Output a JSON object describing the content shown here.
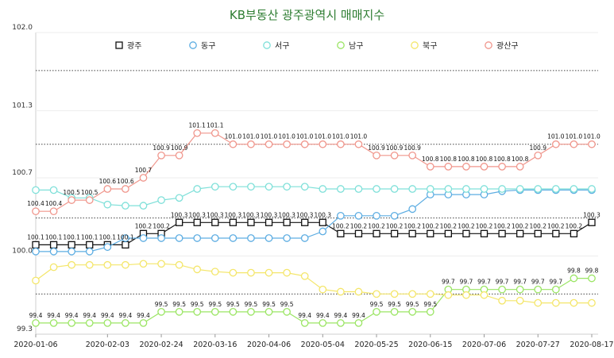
{
  "chart_data": {
    "type": "line",
    "title": "KB부동산 광주광역시 매매지수",
    "xlabel": "",
    "ylabel": "",
    "ylim": [
      99.3,
      102.0
    ],
    "y_ticks": [
      "102.0",
      "101.3",
      "100.7",
      "100.0",
      "99.3"
    ],
    "x_ticks": [
      "2020-01-06",
      "2020-02-03",
      "2020-02-24",
      "2020-03-16",
      "2020-04-06",
      "2020-05-04",
      "2020-05-25",
      "2020-06-15",
      "2020-07-06",
      "2020-07-27",
      "2020-08-17"
    ],
    "x_tick_index": [
      0,
      4,
      7,
      10,
      13,
      16,
      19,
      22,
      25,
      28,
      31
    ],
    "legend_position": "top",
    "grid": "dotted horizontal reference lines",
    "reference_lines": [
      101.66,
      101.0,
      100.34,
      99.66
    ],
    "series": [
      {
        "name": "광주",
        "color": "#111111",
        "marker": "square",
        "labeled": true,
        "values": [
          100.1,
          100.1,
          100.1,
          100.1,
          100.1,
          100.1,
          100.2,
          100.2,
          100.3,
          100.3,
          100.3,
          100.3,
          100.3,
          100.3,
          100.3,
          100.3,
          100.3,
          100.2,
          100.2,
          100.2,
          100.2,
          100.2,
          100.2,
          100.2,
          100.2,
          100.2,
          100.2,
          100.2,
          100.2,
          100.2,
          100.2,
          100.3
        ]
      },
      {
        "name": "동구",
        "color": "#5dade2",
        "marker": "circle",
        "labeled": false,
        "values": [
          100.04,
          100.04,
          100.04,
          100.04,
          100.08,
          100.16,
          100.16,
          100.16,
          100.16,
          100.16,
          100.16,
          100.16,
          100.16,
          100.16,
          100.16,
          100.16,
          100.22,
          100.36,
          100.36,
          100.36,
          100.36,
          100.42,
          100.55,
          100.55,
          100.55,
          100.55,
          100.58,
          100.59,
          100.59,
          100.59,
          100.59,
          100.59
        ]
      },
      {
        "name": "서구",
        "color": "#7fe0d9",
        "marker": "circle",
        "labeled": false,
        "values": [
          100.59,
          100.59,
          100.52,
          100.52,
          100.46,
          100.45,
          100.45,
          100.5,
          100.52,
          100.6,
          100.62,
          100.62,
          100.62,
          100.62,
          100.62,
          100.62,
          100.6,
          100.6,
          100.6,
          100.6,
          100.6,
          100.6,
          100.6,
          100.6,
          100.6,
          100.6,
          100.6,
          100.6,
          100.6,
          100.6,
          100.6,
          100.6
        ]
      },
      {
        "name": "남구",
        "color": "#9be564",
        "marker": "circle",
        "labeled": true,
        "values": [
          99.4,
          99.4,
          99.4,
          99.4,
          99.4,
          99.4,
          99.4,
          99.5,
          99.5,
          99.5,
          99.5,
          99.5,
          99.5,
          99.5,
          99.5,
          99.4,
          99.4,
          99.4,
          99.4,
          99.5,
          99.5,
          99.5,
          99.5,
          99.7,
          99.7,
          99.7,
          99.7,
          99.7,
          99.7,
          99.7,
          99.8,
          99.8
        ]
      },
      {
        "name": "북구",
        "color": "#f4e66a",
        "marker": "circle",
        "labeled": false,
        "values": [
          99.78,
          99.9,
          99.92,
          99.92,
          99.92,
          99.92,
          99.93,
          99.93,
          99.92,
          99.88,
          99.86,
          99.85,
          99.85,
          99.85,
          99.85,
          99.82,
          99.7,
          99.68,
          99.68,
          99.66,
          99.66,
          99.66,
          99.66,
          99.65,
          99.65,
          99.65,
          99.6,
          99.6,
          99.58,
          99.58,
          99.58,
          99.58
        ]
      },
      {
        "name": "광산구",
        "color": "#f0968c",
        "marker": "circle",
        "labeled": true,
        "values": [
          100.4,
          100.4,
          100.5,
          100.5,
          100.6,
          100.6,
          100.7,
          100.9,
          100.9,
          101.1,
          101.1,
          101.0,
          101.0,
          101.0,
          101.0,
          101.0,
          101.0,
          101.0,
          101.0,
          100.9,
          100.9,
          100.9,
          100.8,
          100.8,
          100.8,
          100.8,
          100.8,
          100.8,
          100.9,
          101.0,
          101.0,
          101.0
        ]
      }
    ]
  }
}
